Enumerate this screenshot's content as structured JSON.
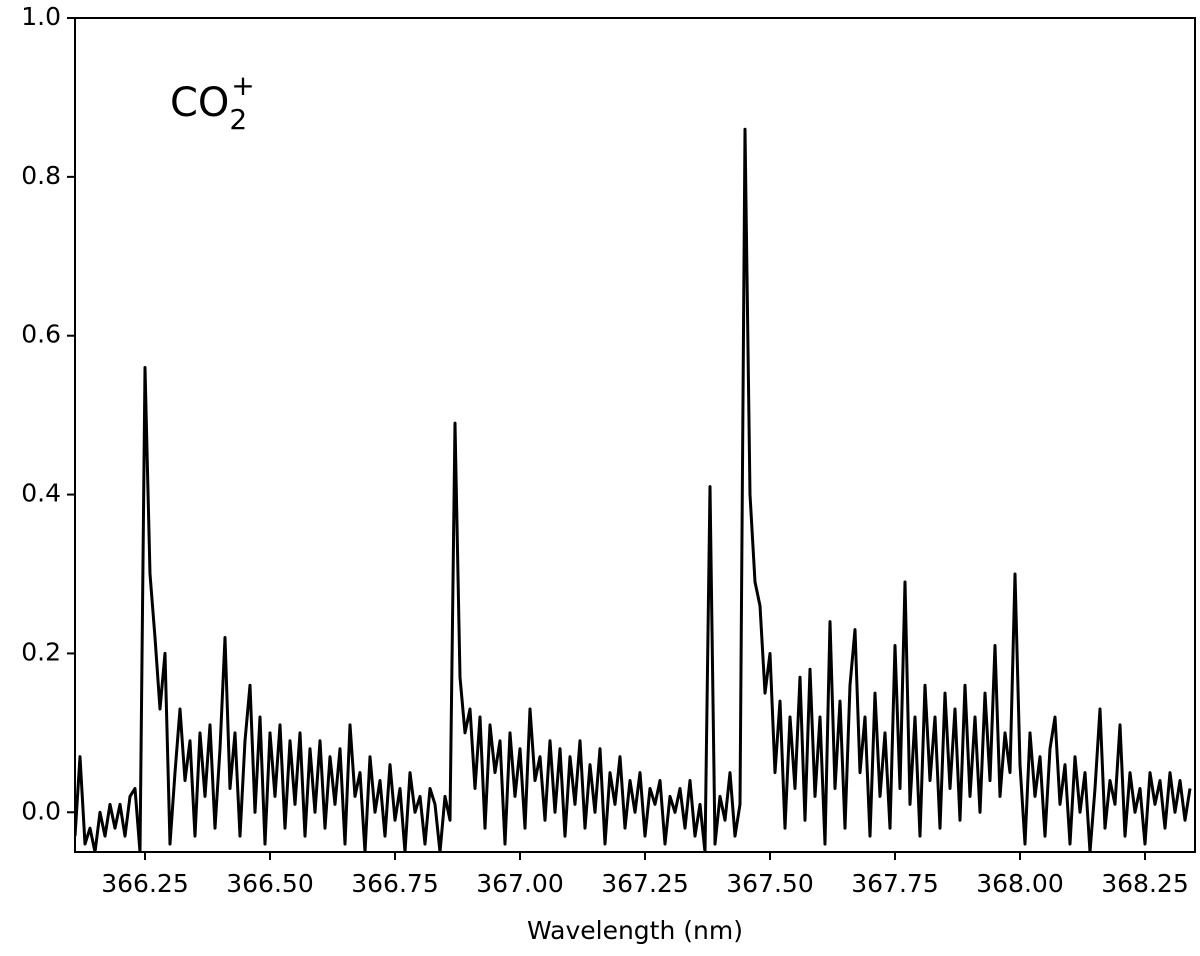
{
  "chart_data": {
    "type": "line",
    "xlabel": "Wavelength (nm)",
    "annotation": {
      "text": "CO",
      "sub": "2",
      "sup": "+"
    },
    "color": "#000000",
    "xlim": [
      366.11,
      368.35
    ],
    "ylim": [
      -0.05,
      1.0
    ],
    "xticks": [
      366.25,
      {
        "value": 366.5,
        "label": "366.50"
      },
      366.75,
      {
        "value": 367.0,
        "label": "367.00"
      },
      367.25,
      {
        "value": 367.5,
        "label": "367.50"
      },
      367.75,
      {
        "value": 368.0,
        "label": "368.00"
      },
      368.25
    ],
    "yticks": [
      {
        "value": 0,
        "label": "0.0"
      },
      0.2,
      0.4,
      0.6,
      0.8,
      {
        "value": 1,
        "label": "1.0"
      }
    ],
    "x": [
      366.11,
      366.12,
      366.13,
      366.14,
      366.15,
      366.16,
      366.17,
      366.18,
      366.19,
      366.2,
      366.21,
      366.22,
      366.23,
      366.24,
      366.25,
      366.26,
      366.27,
      366.28,
      366.29,
      366.3,
      366.31,
      366.32,
      366.33,
      366.34,
      366.35,
      366.36,
      366.37,
      366.38,
      366.39,
      366.4,
      366.41,
      366.42,
      366.43,
      366.44,
      366.45,
      366.46,
      366.47,
      366.48,
      366.49,
      366.5,
      366.51,
      366.52,
      366.53,
      366.54,
      366.55,
      366.56,
      366.57,
      366.58,
      366.59,
      366.6,
      366.61,
      366.62,
      366.63,
      366.64,
      366.65,
      366.66,
      366.67,
      366.68,
      366.69,
      366.7,
      366.71,
      366.72,
      366.73,
      366.74,
      366.75,
      366.76,
      366.77,
      366.78,
      366.79,
      366.8,
      366.81,
      366.82,
      366.83,
      366.84,
      366.85,
      366.86,
      366.87,
      366.88,
      366.89,
      366.9,
      366.91,
      366.92,
      366.93,
      366.94,
      366.95,
      366.96,
      366.97,
      366.98,
      366.99,
      367.0,
      367.01,
      367.02,
      367.03,
      367.04,
      367.05,
      367.06,
      367.07,
      367.08,
      367.09,
      367.1,
      367.11,
      367.12,
      367.13,
      367.14,
      367.15,
      367.16,
      367.17,
      367.18,
      367.19,
      367.2,
      367.21,
      367.22,
      367.23,
      367.24,
      367.25,
      367.26,
      367.27,
      367.28,
      367.29,
      367.3,
      367.31,
      367.32,
      367.33,
      367.34,
      367.35,
      367.36,
      367.37,
      367.38,
      367.39,
      367.4,
      367.41,
      367.42,
      367.43,
      367.44,
      367.45,
      367.46,
      367.47,
      367.48,
      367.49,
      367.5,
      367.51,
      367.52,
      367.53,
      367.54,
      367.55,
      367.56,
      367.57,
      367.58,
      367.59,
      367.6,
      367.61,
      367.62,
      367.63,
      367.64,
      367.65,
      367.66,
      367.67,
      367.68,
      367.69,
      367.7,
      367.71,
      367.72,
      367.73,
      367.74,
      367.75,
      367.76,
      367.77,
      367.78,
      367.79,
      367.8,
      367.81,
      367.82,
      367.83,
      367.84,
      367.85,
      367.86,
      367.87,
      367.88,
      367.89,
      367.9,
      367.91,
      367.92,
      367.93,
      367.94,
      367.95,
      367.96,
      367.97,
      367.98,
      367.99,
      368.0,
      368.01,
      368.02,
      368.03,
      368.04,
      368.05,
      368.06,
      368.07,
      368.08,
      368.09,
      368.1,
      368.11,
      368.12,
      368.13,
      368.14,
      368.15,
      368.16,
      368.17,
      368.18,
      368.19,
      368.2,
      368.21,
      368.22,
      368.23,
      368.24,
      368.25,
      368.26,
      368.27,
      368.28,
      368.29,
      368.3,
      368.31,
      368.32,
      368.33,
      368.34
    ],
    "values": [
      -0.03,
      0.07,
      -0.04,
      -0.02,
      -0.05,
      0.0,
      -0.03,
      0.01,
      -0.02,
      0.01,
      -0.03,
      0.02,
      0.03,
      -0.05,
      0.56,
      0.3,
      0.22,
      0.13,
      0.2,
      -0.04,
      0.05,
      0.13,
      0.04,
      0.09,
      -0.03,
      0.1,
      0.02,
      0.11,
      -0.02,
      0.08,
      0.22,
      0.03,
      0.1,
      -0.03,
      0.09,
      0.16,
      0.0,
      0.12,
      -0.04,
      0.1,
      0.02,
      0.11,
      -0.02,
      0.09,
      0.01,
      0.1,
      -0.03,
      0.08,
      0.0,
      0.09,
      -0.02,
      0.07,
      0.01,
      0.08,
      -0.04,
      0.11,
      0.02,
      0.05,
      -0.05,
      0.07,
      0.0,
      0.04,
      -0.03,
      0.06,
      -0.01,
      0.03,
      -0.05,
      0.05,
      0.0,
      0.02,
      -0.04,
      0.03,
      0.01,
      -0.05,
      0.02,
      -0.01,
      0.49,
      0.17,
      0.1,
      0.13,
      0.03,
      0.12,
      -0.02,
      0.11,
      0.05,
      0.09,
      -0.04,
      0.1,
      0.02,
      0.08,
      -0.02,
      0.13,
      0.04,
      0.07,
      -0.01,
      0.09,
      0.0,
      0.08,
      -0.03,
      0.07,
      0.01,
      0.09,
      -0.02,
      0.06,
      0.0,
      0.08,
      -0.04,
      0.05,
      0.01,
      0.07,
      -0.02,
      0.04,
      0.0,
      0.05,
      -0.03,
      0.03,
      0.01,
      0.04,
      -0.04,
      0.02,
      0.0,
      0.03,
      -0.02,
      0.04,
      -0.03,
      0.01,
      -0.05,
      0.41,
      -0.04,
      0.02,
      -0.01,
      0.05,
      -0.03,
      0.01,
      0.86,
      0.4,
      0.29,
      0.26,
      0.15,
      0.2,
      0.05,
      0.14,
      -0.02,
      0.12,
      0.03,
      0.17,
      -0.01,
      0.18,
      0.02,
      0.12,
      -0.04,
      0.24,
      0.03,
      0.14,
      -0.02,
      0.16,
      0.23,
      0.05,
      0.12,
      -0.03,
      0.15,
      0.02,
      0.1,
      -0.02,
      0.21,
      0.03,
      0.29,
      0.01,
      0.12,
      -0.03,
      0.16,
      0.04,
      0.12,
      -0.02,
      0.15,
      0.03,
      0.13,
      -0.01,
      0.16,
      0.02,
      0.12,
      0.0,
      0.15,
      0.04,
      0.21,
      0.02,
      0.1,
      0.05,
      0.3,
      0.06,
      -0.04,
      0.1,
      0.02,
      0.07,
      -0.03,
      0.08,
      0.12,
      0.01,
      0.06,
      -0.04,
      0.07,
      0.0,
      0.05,
      -0.05,
      0.03,
      0.13,
      -0.02,
      0.04,
      0.01,
      0.11,
      -0.03,
      0.05,
      0.0,
      0.03,
      -0.04,
      0.05,
      0.01,
      0.04,
      -0.02,
      0.05,
      0.0,
      0.04,
      -0.01,
      0.03
    ]
  }
}
